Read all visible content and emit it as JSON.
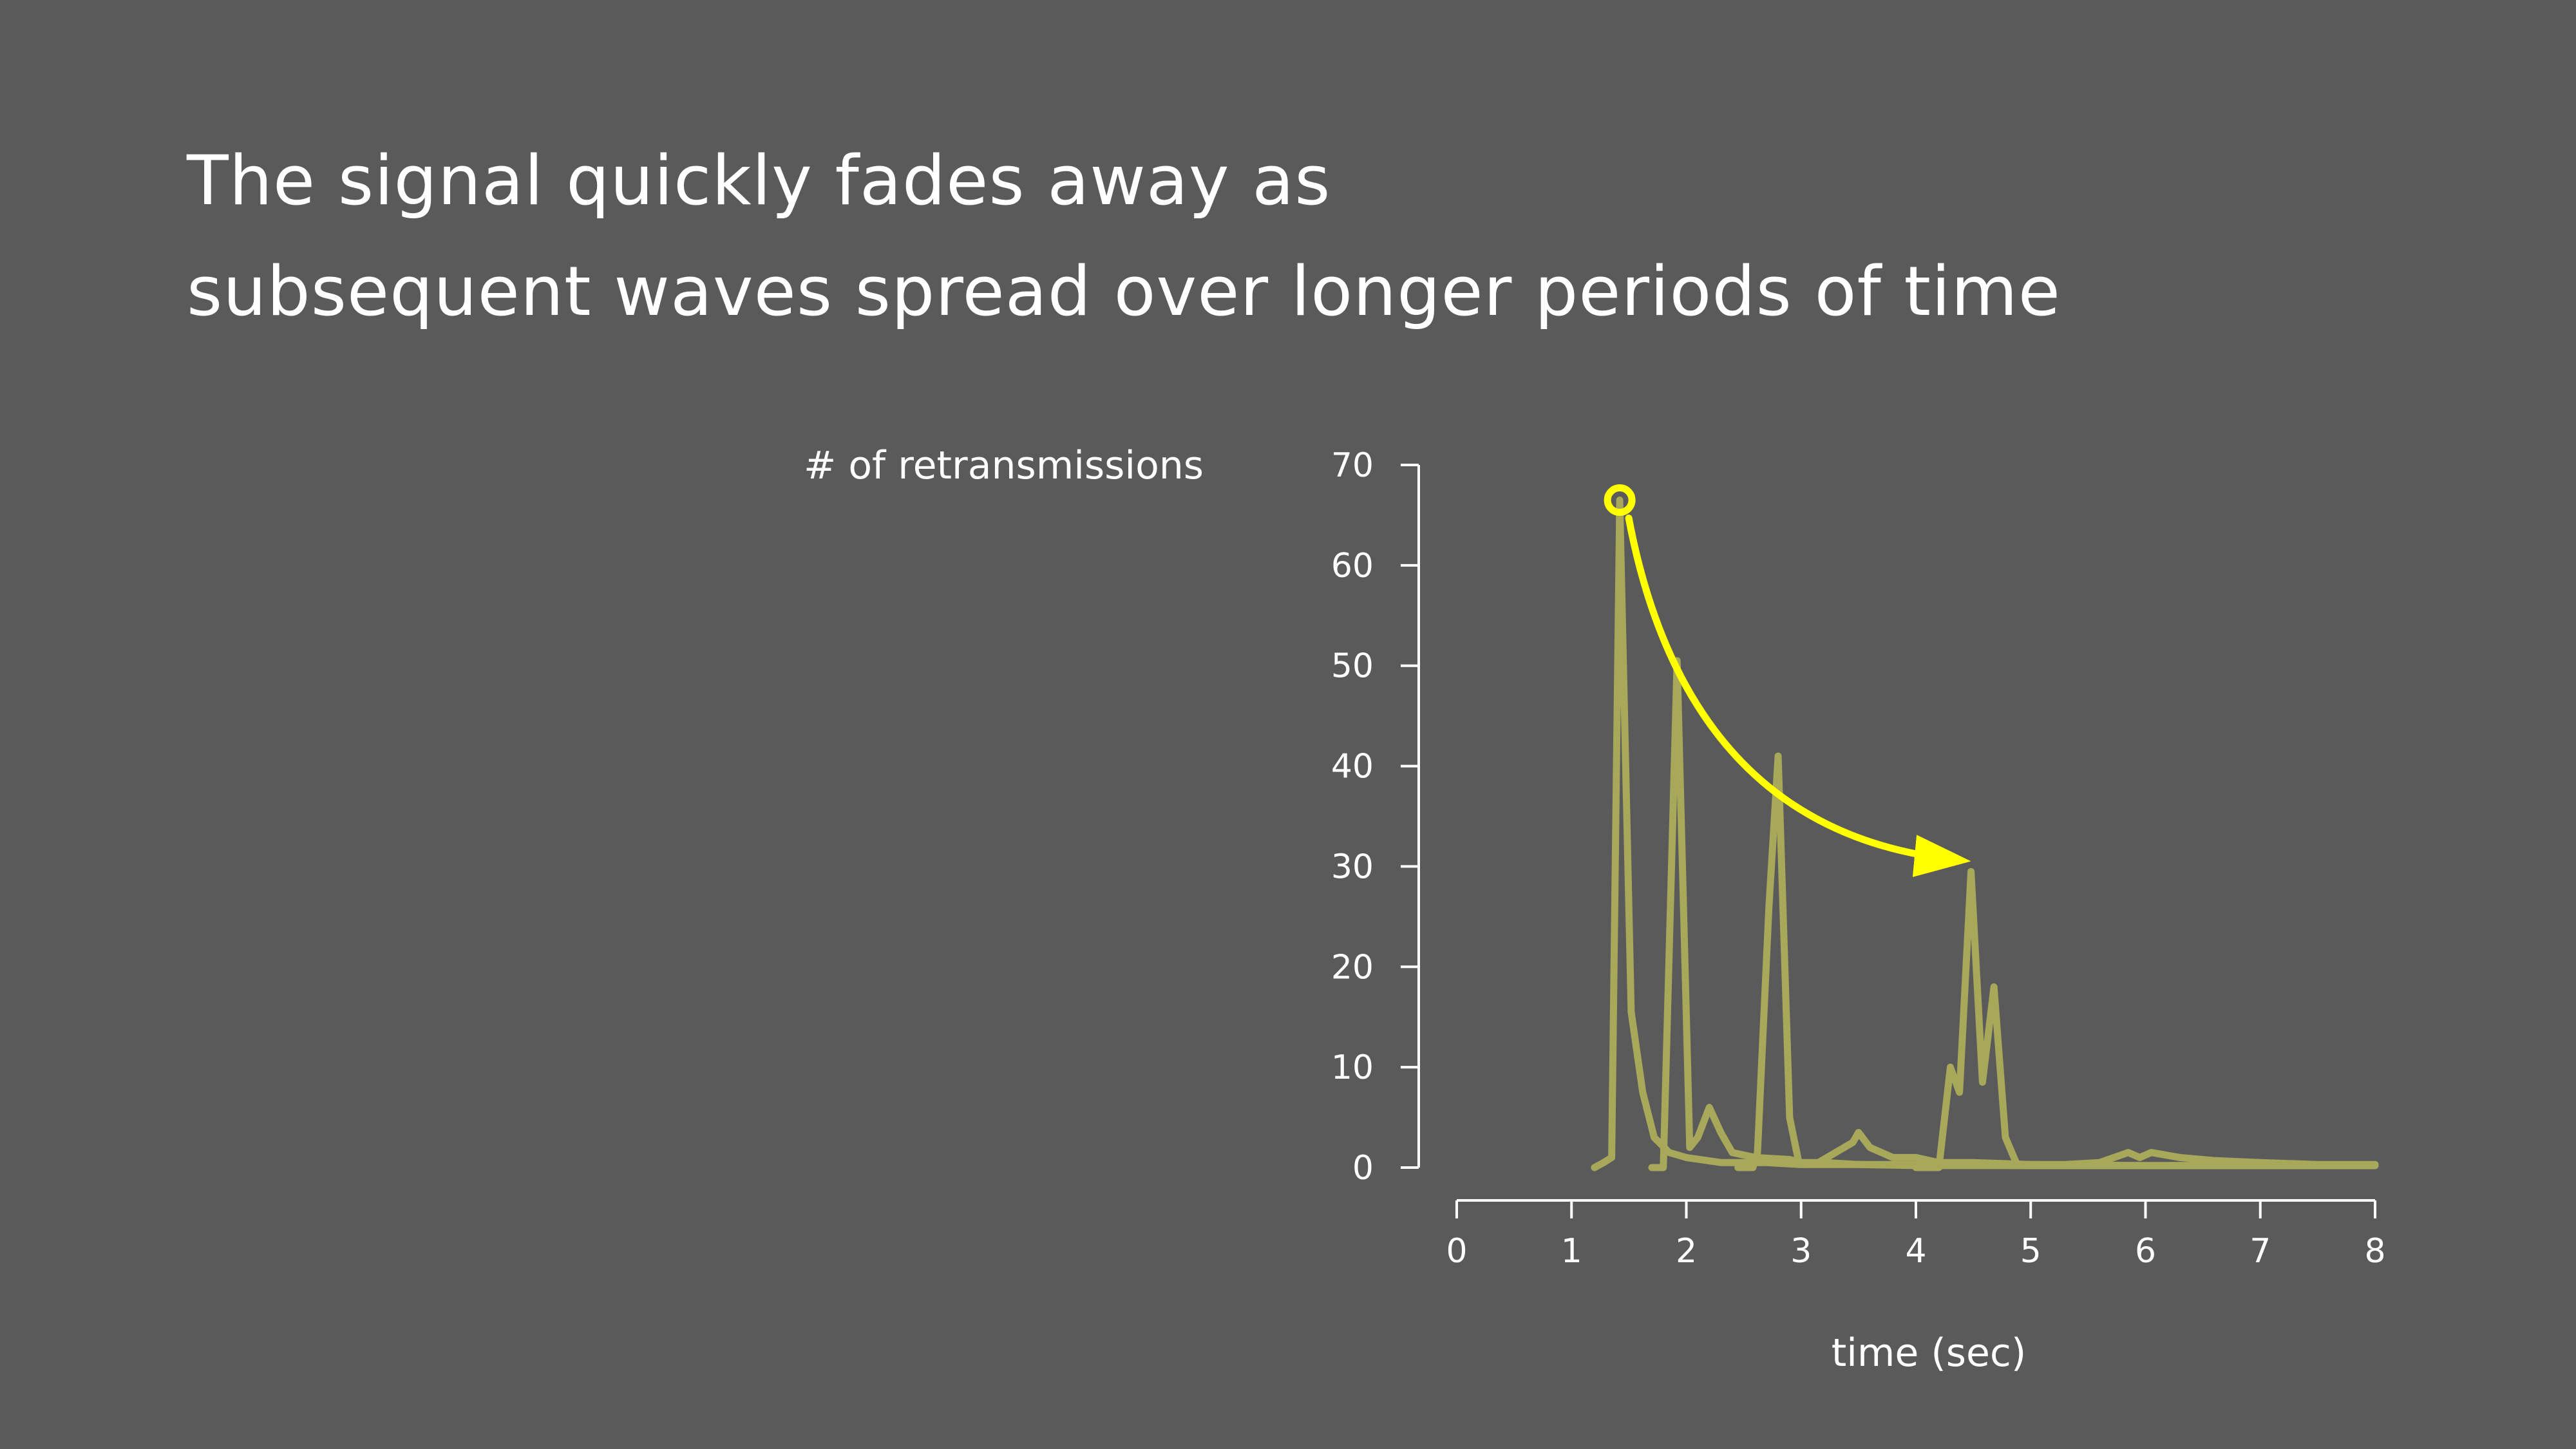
{
  "title": {
    "line1": "The signal quickly fades away as",
    "line2": "subsequent waves spread over longer periods of time"
  },
  "colors": {
    "background": "#5a5a5a",
    "series": "#a7a85a",
    "highlight": "#ffff00",
    "text": "#ffffff"
  },
  "chart_data": {
    "type": "line",
    "title": "",
    "xlabel": "time (sec)",
    "ylabel": "# of retransmissions",
    "xlim": [
      0,
      8
    ],
    "ylim": [
      0,
      70
    ],
    "x_ticks": [
      0,
      1,
      2,
      3,
      4,
      5,
      6,
      7,
      8
    ],
    "y_ticks": [
      0,
      10,
      20,
      30,
      40,
      50,
      60,
      70
    ],
    "grid": false,
    "legend": "none",
    "series": [
      {
        "x": [
          1.2,
          1.28,
          1.35,
          1.42,
          1.52,
          1.62,
          1.72,
          1.85,
          2.0,
          2.3,
          2.7,
          3.0,
          3.5,
          4.0,
          4.5,
          5.0,
          6.0,
          7.0,
          8.0
        ],
        "y": [
          0,
          0.5,
          1,
          66.5,
          15.5,
          7.5,
          3,
          1.5,
          1,
          0.5,
          0.5,
          0.3,
          0.3,
          0.2,
          0.2,
          0.2,
          0.2,
          0.2,
          0.2
        ]
      },
      {
        "x": [
          1.7,
          1.8,
          1.92,
          2.03,
          2.1,
          2.2,
          2.3,
          2.4,
          2.6,
          2.9,
          3.0,
          3.2,
          3.5,
          4.0,
          5.0,
          6.0,
          7.0,
          8.0
        ],
        "y": [
          0,
          0,
          50.5,
          2,
          3,
          6,
          3.5,
          1.5,
          1,
          0.8,
          0.5,
          0.5,
          0.3,
          0.3,
          0.2,
          0.2,
          0.2,
          0.2
        ]
      },
      {
        "x": [
          2.45,
          2.58,
          2.62,
          2.72,
          2.8,
          2.9,
          2.98,
          3.05,
          3.15,
          3.3,
          3.45,
          3.5,
          3.6,
          3.8,
          4.0,
          4.2,
          4.5,
          5.0,
          6.0,
          7.0,
          8.0
        ],
        "y": [
          0,
          0,
          1.5,
          26,
          41,
          5,
          0.5,
          0.3,
          0.5,
          1.5,
          2.5,
          3.5,
          2,
          1,
          1,
          0.5,
          0.5,
          0.3,
          0.2,
          0.2,
          0.2
        ]
      },
      {
        "x": [
          4.0,
          4.2,
          4.3,
          4.38,
          4.48,
          4.58,
          4.68,
          4.78,
          4.88,
          5.0,
          5.3,
          5.6,
          5.85,
          5.95,
          6.05,
          6.3,
          6.6,
          7.0,
          7.5,
          8.0
        ],
        "y": [
          0,
          0,
          10,
          7.5,
          29.5,
          8.5,
          18,
          3,
          0.3,
          0.3,
          0.3,
          0.5,
          1.5,
          1,
          1.5,
          1,
          0.7,
          0.5,
          0.3,
          0.3
        ]
      }
    ],
    "annotations": [
      {
        "type": "circle",
        "x": 1.42,
        "y": 66.5
      },
      {
        "type": "arrow",
        "from": [
          1.42,
          66.5
        ],
        "to": [
          4.5,
          31
        ]
      }
    ]
  }
}
